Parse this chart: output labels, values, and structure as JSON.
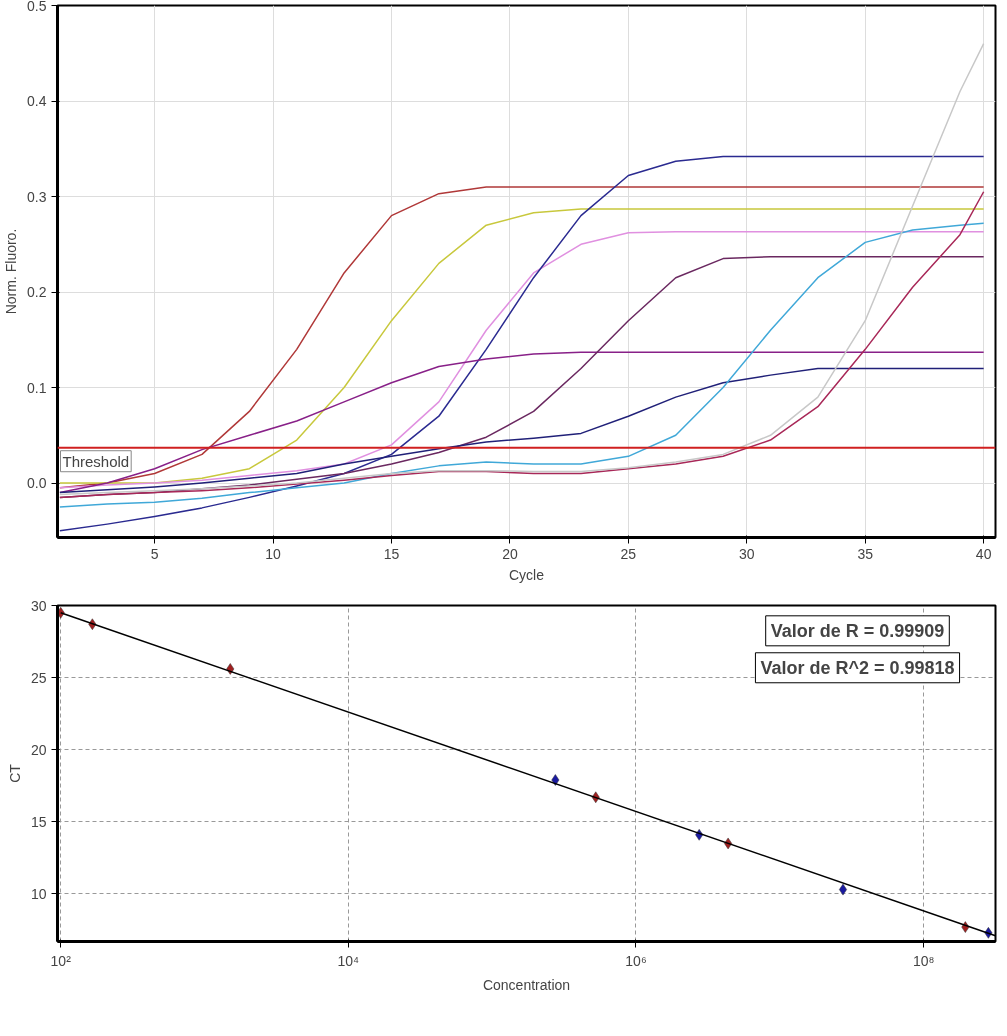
{
  "chart_data": [
    {
      "type": "line",
      "xlabel": "Cycle",
      "ylabel": "Norm. Fluoro.",
      "x": [
        1,
        3,
        5,
        7,
        9,
        11,
        13,
        15,
        17,
        19,
        21,
        23,
        25,
        27,
        29,
        31,
        33,
        35,
        37,
        39,
        40
      ],
      "series": [
        {
          "color": "#b03838",
          "values": [
            -0.005,
            0.0,
            0.01,
            0.03,
            0.075,
            0.14,
            0.22,
            0.28,
            0.303,
            0.31,
            0.31,
            0.31,
            0.31,
            0.31,
            0.31,
            0.31,
            0.31,
            0.31,
            0.31,
            0.31,
            0.31
          ]
        },
        {
          "color": "#c8c83c",
          "values": [
            0.0,
            0.0,
            0.0,
            0.005,
            0.015,
            0.045,
            0.1,
            0.17,
            0.23,
            0.27,
            0.283,
            0.287,
            0.287,
            0.287,
            0.287,
            0.287,
            0.287,
            0.287,
            0.287,
            0.287,
            0.287
          ]
        },
        {
          "color": "#e090e0",
          "values": [
            -0.005,
            -0.002,
            0.0,
            0.003,
            0.008,
            0.013,
            0.02,
            0.04,
            0.085,
            0.16,
            0.22,
            0.25,
            0.262,
            0.263,
            0.263,
            0.263,
            0.263,
            0.263,
            0.263,
            0.263,
            0.263
          ]
        },
        {
          "color": "#2a2a90",
          "values": [
            -0.05,
            -0.043,
            -0.035,
            -0.026,
            -0.015,
            -0.003,
            0.01,
            0.03,
            0.07,
            0.14,
            0.215,
            0.28,
            0.322,
            0.337,
            0.342,
            0.342,
            0.342,
            0.342,
            0.342,
            0.342,
            0.342
          ]
        },
        {
          "color": "#882088",
          "values": [
            -0.01,
            0.0,
            0.015,
            0.035,
            0.05,
            0.065,
            0.085,
            0.105,
            0.122,
            0.13,
            0.135,
            0.137,
            0.137,
            0.137,
            0.137,
            0.137,
            0.137,
            0.137,
            0.137,
            0.137,
            0.137
          ]
        },
        {
          "color": "#6a2860",
          "values": [
            -0.015,
            -0.012,
            -0.01,
            -0.006,
            -0.002,
            0.004,
            0.01,
            0.02,
            0.032,
            0.048,
            0.075,
            0.12,
            0.17,
            0.215,
            0.235,
            0.237,
            0.237,
            0.237,
            0.237,
            0.237,
            0.237
          ]
        },
        {
          "color": "#202078",
          "values": [
            -0.01,
            -0.007,
            -0.004,
            0.0,
            0.005,
            0.01,
            0.02,
            0.028,
            0.036,
            0.043,
            0.047,
            0.052,
            0.07,
            0.09,
            0.105,
            0.113,
            0.12,
            0.12,
            0.12,
            0.12,
            0.12
          ]
        },
        {
          "color": "#40a8d8",
          "values": [
            -0.025,
            -0.022,
            -0.02,
            -0.016,
            -0.01,
            -0.005,
            0.0,
            0.01,
            0.018,
            0.022,
            0.02,
            0.02,
            0.028,
            0.05,
            0.1,
            0.16,
            0.215,
            0.252,
            0.265,
            0.27,
            0.272
          ]
        },
        {
          "color": "#a82858",
          "values": [
            -0.015,
            -0.012,
            -0.01,
            -0.008,
            -0.005,
            -0.001,
            0.003,
            0.008,
            0.012,
            0.012,
            0.01,
            0.01,
            0.015,
            0.02,
            0.028,
            0.045,
            0.08,
            0.14,
            0.205,
            0.26,
            0.305
          ]
        },
        {
          "color": "#c8c8c8",
          "values": [
            -0.012,
            -0.01,
            -0.008,
            -0.006,
            -0.003,
            0.0,
            0.005,
            0.01,
            0.013,
            0.013,
            0.012,
            0.012,
            0.016,
            0.022,
            0.03,
            0.05,
            0.09,
            0.17,
            0.29,
            0.41,
            0.46
          ]
        }
      ],
      "xlim": [
        0.9,
        40.5
      ],
      "ylim": [
        -0.057,
        0.5
      ],
      "xticks": [
        5,
        10,
        15,
        20,
        25,
        30,
        35,
        40
      ],
      "yticks": [
        {
          "value": 0,
          "label": "0.0"
        },
        0.1,
        0.2,
        0.3,
        0.4,
        0.5
      ],
      "grid": true,
      "ref_lines": [
        {
          "axis": "y",
          "value": 0.037,
          "label": "Threshold",
          "color": "#d02020"
        }
      ]
    },
    {
      "type": "scatter",
      "xlabel": "Concentration",
      "ylabel": "CT",
      "log": "x",
      "marker": "diamond",
      "grid": true,
      "series": [
        {
          "color": "#a02020",
          "x": [
            100,
            166,
            1510,
            525000,
            4370000,
            195000000
          ],
          "values": [
            29.5,
            28.7,
            25.6,
            16.7,
            13.5,
            7.7
          ]
        },
        {
          "color": "#1a1aa0",
          "x": [
            275000,
            2750000,
            27500000,
            282000000
          ],
          "values": [
            17.9,
            14.1,
            10.3,
            7.3
          ]
        },
        {
          "type": "line",
          "marker": "none",
          "color": "#000000",
          "x": [
            100,
            316000000
          ],
          "values": [
            29.5,
            7.1
          ]
        }
      ],
      "xlim": [
        95,
        316000000
      ],
      "ylim": [
        6.7,
        30
      ],
      "xticks": [
        {
          "value": 100,
          "label": "10²"
        },
        {
          "value": 10000,
          "label": "10⁴"
        },
        {
          "value": 1000000,
          "label": "10⁶"
        },
        {
          "value": 100000000,
          "label": "10⁸"
        }
      ],
      "yticks": [
        10,
        15,
        20,
        25,
        30
      ],
      "annotations": [
        "Valor de R = 0.99909",
        "Valor de R^2 = 0.99818"
      ]
    }
  ]
}
